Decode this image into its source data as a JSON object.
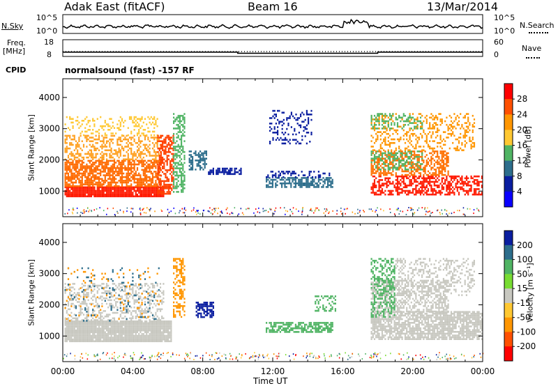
{
  "header": {
    "radar": "Adak East (fitACF)",
    "beam": "Beam 16",
    "date": "13/Mar/2014"
  },
  "noise_panel": {
    "left_label": "N.Sky",
    "right_label": "N.Search",
    "left_ticks": [
      "10^5",
      "10^0"
    ],
    "right_ticks": [
      "10^5",
      "10^0"
    ]
  },
  "freq_panel": {
    "left_label_line1": "Freq.",
    "left_label_line2": "[MHz]",
    "right_label": "Nave",
    "left_ticks": [
      "18",
      "8"
    ],
    "right_ticks": [
      "60",
      "0"
    ],
    "freq_mhz": [
      {
        "from_h": 0,
        "to_h": 10,
        "value": 10.6
      },
      {
        "from_h": 10,
        "to_h": 18,
        "value": 9.9
      },
      {
        "from_h": 18,
        "to_h": 24,
        "value": 10.6
      }
    ]
  },
  "cpid": {
    "label": "CPID",
    "text": "normalsound (fast) -157 RF"
  },
  "x_axis": {
    "title": "Time UT",
    "range_h": [
      0,
      24
    ],
    "ticks": [
      "00:00",
      "04:00",
      "08:00",
      "12:00",
      "16:00",
      "20:00",
      "00:00"
    ]
  },
  "chart_data": [
    {
      "type": "heatmap",
      "name": "power",
      "ylabel": "Slant Range [km]",
      "ylim": [
        180,
        4600
      ],
      "y_ticks": [
        "1000",
        "2000",
        "3000",
        "4000"
      ],
      "colorbar_title": "Power [dB]",
      "colorbar_labels": [
        "28",
        "24",
        "20",
        "16",
        "12",
        "8",
        "4"
      ],
      "colorbar_colors": [
        "#ff0000",
        "#ff5000",
        "#ff9600",
        "#ffc832",
        "#50b464",
        "#2d6e8c",
        "#0a1ea0",
        "#0a00ff"
      ],
      "regions": [
        {
          "h0": 0.1,
          "h1": 5.8,
          "r0": 850,
          "r1": 1150,
          "c": "#ff1a00",
          "d": 0.95
        },
        {
          "h0": 0.1,
          "h1": 5.6,
          "r0": 1150,
          "r1": 2000,
          "c": "#ff6a00",
          "d": 0.7
        },
        {
          "h0": 0.1,
          "h1": 5.6,
          "r0": 2000,
          "r1": 2800,
          "c": "#ffa020",
          "d": 0.45
        },
        {
          "h0": 0.1,
          "h1": 5.4,
          "r0": 2800,
          "r1": 3400,
          "c": "#ffc832",
          "d": 0.25
        },
        {
          "h0": 5.4,
          "h1": 6.3,
          "r0": 900,
          "r1": 2800,
          "c": "#ff4000",
          "d": 0.6
        },
        {
          "h0": 6.3,
          "h1": 7.0,
          "r0": 1000,
          "r1": 3500,
          "c": "#50b464",
          "d": 0.5
        },
        {
          "h0": 8.3,
          "h1": 10.2,
          "r0": 1550,
          "r1": 1750,
          "c": "#0a1ea0",
          "d": 0.7
        },
        {
          "h0": 7.2,
          "h1": 8.2,
          "r0": 1700,
          "r1": 2300,
          "c": "#2d6e8c",
          "d": 0.5
        },
        {
          "h0": 11.6,
          "h1": 15.4,
          "r0": 1150,
          "r1": 1450,
          "c": "#2d6e8c",
          "d": 0.6
        },
        {
          "h0": 11.6,
          "h1": 15.2,
          "r0": 1450,
          "r1": 1650,
          "c": "#0a1ea0",
          "d": 0.35
        },
        {
          "h0": 11.8,
          "h1": 14.2,
          "r0": 2500,
          "r1": 3600,
          "c": "#0a1ea0",
          "d": 0.25
        },
        {
          "h0": 17.6,
          "h1": 24.0,
          "r0": 900,
          "r1": 1500,
          "c": "#ff1a00",
          "d": 0.55
        },
        {
          "h0": 17.6,
          "h1": 22.0,
          "r0": 1500,
          "r1": 2300,
          "c": "#ff7000",
          "d": 0.5
        },
        {
          "h0": 17.6,
          "h1": 20.5,
          "r0": 1700,
          "r1": 2300,
          "c": "#50b464",
          "d": 0.35
        },
        {
          "h0": 17.6,
          "h1": 23.5,
          "r0": 2300,
          "r1": 3500,
          "c": "#ff9600",
          "d": 0.3
        },
        {
          "h0": 17.6,
          "h1": 20.5,
          "r0": 3000,
          "r1": 3500,
          "c": "#50b464",
          "d": 0.3
        }
      ]
    },
    {
      "type": "heatmap",
      "name": "velocity",
      "ylabel": "Slant Range [km]",
      "ylim": [
        180,
        4600
      ],
      "y_ticks": [
        "1000",
        "2000",
        "3000",
        "4000"
      ],
      "colorbar_title": "Velocity [m s⁻¹]",
      "colorbar_labels": [
        "200",
        "100",
        "50",
        "15",
        "-15",
        "-50",
        "-100",
        "-200"
      ],
      "colorbar_colors": [
        "#0a1ea0",
        "#2d6e8c",
        "#50b464",
        "#78dc32",
        "#c8c8c0",
        "#ffc832",
        "#ff9600",
        "#ff5000",
        "#ff0000"
      ],
      "regions": [
        {
          "h0": 0.1,
          "h1": 6.2,
          "r0": 850,
          "r1": 1500,
          "c": "#c8c8c0",
          "d": 0.95
        },
        {
          "h0": 0.1,
          "h1": 5.8,
          "r0": 1500,
          "r1": 2700,
          "c": "#c8c8c0",
          "d": 0.35
        },
        {
          "h0": 0.1,
          "h1": 5.6,
          "r0": 1500,
          "r1": 3200,
          "c": "#2d6e8c",
          "d": 0.05
        },
        {
          "h0": 0.1,
          "h1": 5.6,
          "r0": 1500,
          "r1": 3200,
          "c": "#ff9600",
          "d": 0.05
        },
        {
          "h0": 6.3,
          "h1": 7.0,
          "r0": 1600,
          "r1": 3500,
          "c": "#ff9600",
          "d": 0.45
        },
        {
          "h0": 7.6,
          "h1": 8.6,
          "r0": 1600,
          "r1": 2100,
          "c": "#0a1ea0",
          "d": 0.6
        },
        {
          "h0": 11.6,
          "h1": 15.4,
          "r0": 1150,
          "r1": 1450,
          "c": "#50b464",
          "d": 0.65
        },
        {
          "h0": 14.4,
          "h1": 15.6,
          "r0": 1800,
          "r1": 2300,
          "c": "#50b464",
          "d": 0.4
        },
        {
          "h0": 17.6,
          "h1": 24.0,
          "r0": 900,
          "r1": 1800,
          "c": "#c8c8c0",
          "d": 0.75
        },
        {
          "h0": 17.6,
          "h1": 22.0,
          "r0": 1800,
          "r1": 2800,
          "c": "#c8c8c0",
          "d": 0.5
        },
        {
          "h0": 17.6,
          "h1": 19.0,
          "r0": 1600,
          "r1": 3500,
          "c": "#50b464",
          "d": 0.45
        },
        {
          "h0": 19.0,
          "h1": 23.5,
          "r0": 2300,
          "r1": 3500,
          "c": "#c8c8c0",
          "d": 0.3
        }
      ]
    }
  ]
}
